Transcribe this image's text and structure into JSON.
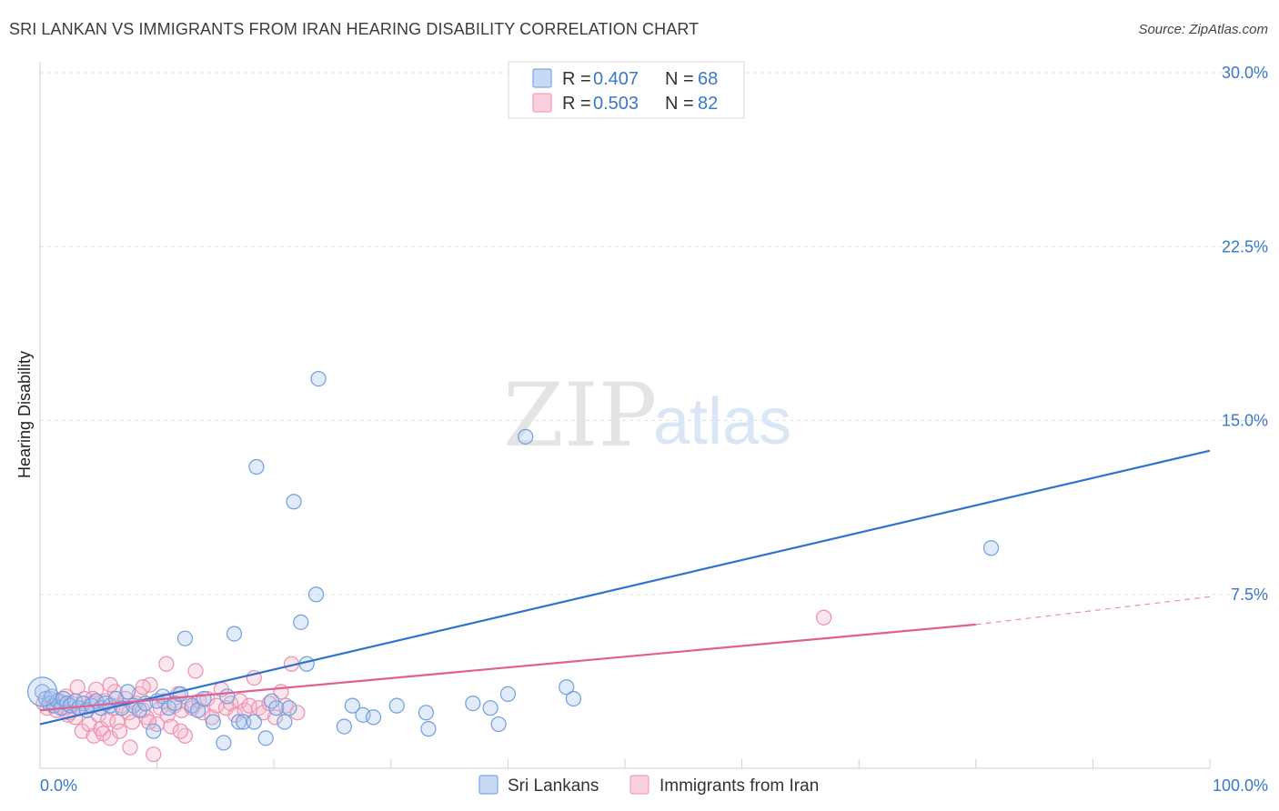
{
  "title": "SRI LANKAN VS IMMIGRANTS FROM IRAN HEARING DISABILITY CORRELATION CHART",
  "source": "Source: ZipAtlas.com",
  "watermark": {
    "zip": "ZIP",
    "atlas": "atlas"
  },
  "chart_data": {
    "type": "scatter",
    "title": "SRI LANKAN VS IMMIGRANTS FROM IRAN HEARING DISABILITY CORRELATION CHART",
    "xlabel": "",
    "ylabel": "Hearing Disability",
    "xlim": [
      0,
      100
    ],
    "ylim": [
      0,
      30
    ],
    "x_tick_labels": [
      "0.0%",
      "100.0%"
    ],
    "y_ticks": [
      7.5,
      15.0,
      22.5,
      30.0
    ],
    "y_tick_labels": [
      "7.5%",
      "15.0%",
      "22.5%",
      "30.0%"
    ],
    "grid": true,
    "legend": {
      "placement": "top-center",
      "entries": [
        {
          "r_label": "R =",
          "r_value": "0.407",
          "n_label": "N =",
          "n_value": "68",
          "color": "#7aa7e8"
        },
        {
          "r_label": "R =",
          "r_value": "0.503",
          "n_label": "N =",
          "n_value": "82",
          "color": "#f0a0bb"
        }
      ]
    },
    "series": [
      {
        "name": "Sri Lankans",
        "color": "#6f9fe0",
        "line_color": "#2f72d0",
        "trend": {
          "x0": 0,
          "y0": 1.9,
          "x1": 100,
          "y1": 13.7
        },
        "points": [
          [
            0.2,
            3.3
          ],
          [
            0.5,
            3.0
          ],
          [
            0.8,
            2.8
          ],
          [
            1.0,
            3.1
          ],
          [
            1.2,
            2.7
          ],
          [
            1.5,
            2.9
          ],
          [
            1.8,
            2.6
          ],
          [
            2.0,
            3.0
          ],
          [
            2.3,
            2.8
          ],
          [
            2.6,
            2.7
          ],
          [
            3.0,
            2.9
          ],
          [
            3.3,
            2.6
          ],
          [
            3.7,
            2.8
          ],
          [
            4.0,
            2.5
          ],
          [
            4.4,
            2.7
          ],
          [
            4.8,
            2.9
          ],
          [
            5.2,
            2.6
          ],
          [
            5.6,
            2.8
          ],
          [
            6.0,
            2.7
          ],
          [
            6.5,
            3.0
          ],
          [
            7.0,
            2.6
          ],
          [
            7.5,
            3.3
          ],
          [
            8.0,
            2.7
          ],
          [
            8.5,
            2.5
          ],
          [
            9.0,
            2.8
          ],
          [
            9.7,
            1.6
          ],
          [
            10.0,
            2.9
          ],
          [
            10.5,
            3.1
          ],
          [
            11.0,
            2.6
          ],
          [
            11.5,
            2.8
          ],
          [
            12.0,
            3.2
          ],
          [
            12.4,
            5.6
          ],
          [
            13.0,
            2.7
          ],
          [
            13.5,
            2.5
          ],
          [
            14.0,
            3.0
          ],
          [
            14.8,
            2.0
          ],
          [
            15.7,
            1.1
          ],
          [
            16.0,
            3.1
          ],
          [
            16.6,
            5.8
          ],
          [
            17.0,
            2.0
          ],
          [
            17.4,
            2.0
          ],
          [
            18.3,
            2.0
          ],
          [
            18.5,
            13.0
          ],
          [
            19.3,
            1.3
          ],
          [
            19.8,
            2.9
          ],
          [
            20.2,
            2.6
          ],
          [
            20.9,
            2.0
          ],
          [
            21.3,
            2.6
          ],
          [
            21.7,
            11.5
          ],
          [
            22.3,
            6.3
          ],
          [
            22.8,
            4.5
          ],
          [
            23.6,
            7.5
          ],
          [
            23.8,
            16.8
          ],
          [
            26.0,
            1.8
          ],
          [
            26.7,
            2.7
          ],
          [
            27.6,
            2.3
          ],
          [
            28.5,
            2.2
          ],
          [
            30.5,
            2.7
          ],
          [
            33.0,
            2.4
          ],
          [
            33.2,
            1.7
          ],
          [
            37.0,
            2.8
          ],
          [
            38.5,
            2.6
          ],
          [
            39.2,
            1.9
          ],
          [
            40.0,
            3.2
          ],
          [
            45.0,
            3.5
          ],
          [
            45.6,
            3.0
          ],
          [
            41.5,
            14.3
          ],
          [
            81.3,
            9.5
          ]
        ]
      },
      {
        "name": "Immigrants from Iran",
        "color": "#f0a0bb",
        "line_color": "#e0608f",
        "trend": {
          "x0": 0,
          "y0": 2.5,
          "x1": 80,
          "y1": 6.2
        },
        "trend_dashed": {
          "x0": 80,
          "y0": 6.2,
          "x1": 100,
          "y1": 7.4
        },
        "points": [
          [
            0.3,
            2.8
          ],
          [
            0.6,
            2.6
          ],
          [
            0.9,
            3.0
          ],
          [
            1.1,
            2.7
          ],
          [
            1.4,
            2.5
          ],
          [
            1.7,
            2.9
          ],
          [
            2.0,
            2.6
          ],
          [
            2.2,
            3.1
          ],
          [
            2.5,
            2.4
          ],
          [
            2.7,
            2.8
          ],
          [
            3.0,
            2.2
          ],
          [
            3.2,
            3.5
          ],
          [
            3.4,
            2.6
          ],
          [
            3.6,
            1.6
          ],
          [
            3.8,
            3.0
          ],
          [
            4.0,
            2.5
          ],
          [
            4.2,
            1.9
          ],
          [
            4.4,
            2.8
          ],
          [
            4.6,
            1.4
          ],
          [
            4.8,
            3.4
          ],
          [
            5.0,
            2.3
          ],
          [
            5.2,
            1.7
          ],
          [
            5.4,
            1.5
          ],
          [
            5.6,
            2.9
          ],
          [
            5.8,
            2.1
          ],
          [
            6.0,
            1.3
          ],
          [
            6.2,
            2.6
          ],
          [
            6.4,
            3.3
          ],
          [
            6.6,
            2.0
          ],
          [
            6.8,
            1.6
          ],
          [
            7.0,
            2.7
          ],
          [
            7.3,
            3.0
          ],
          [
            7.6,
            2.4
          ],
          [
            7.9,
            2.0
          ],
          [
            8.2,
            2.8
          ],
          [
            8.5,
            3.2
          ],
          [
            8.8,
            2.5
          ],
          [
            9.1,
            2.2
          ],
          [
            9.4,
            3.6
          ],
          [
            9.7,
            0.6
          ],
          [
            10.0,
            1.9
          ],
          [
            10.3,
            2.6
          ],
          [
            10.6,
            2.9
          ],
          [
            10.9,
            2.3
          ],
          [
            11.2,
            1.8
          ],
          [
            11.5,
            2.7
          ],
          [
            11.8,
            3.2
          ],
          [
            12.1,
            2.5
          ],
          [
            12.4,
            1.4
          ],
          [
            12.7,
            2.8
          ],
          [
            13.0,
            2.6
          ],
          [
            13.3,
            4.2
          ],
          [
            13.6,
            2.9
          ],
          [
            13.9,
            2.4
          ],
          [
            14.3,
            3.0
          ],
          [
            14.7,
            2.2
          ],
          [
            15.1,
            2.7
          ],
          [
            15.5,
            3.4
          ],
          [
            15.9,
            2.6
          ],
          [
            16.3,
            2.8
          ],
          [
            16.7,
            2.3
          ],
          [
            17.1,
            2.9
          ],
          [
            17.5,
            2.5
          ],
          [
            17.9,
            2.7
          ],
          [
            18.3,
            3.9
          ],
          [
            18.7,
            2.6
          ],
          [
            19.1,
            2.4
          ],
          [
            19.6,
            2.8
          ],
          [
            20.1,
            2.2
          ],
          [
            20.6,
            3.3
          ],
          [
            21.0,
            2.7
          ],
          [
            21.5,
            4.5
          ],
          [
            22.0,
            2.4
          ],
          [
            8.8,
            3.5
          ],
          [
            10.8,
            4.5
          ],
          [
            12.0,
            1.6
          ],
          [
            6.0,
            3.6
          ],
          [
            4.5,
            3.0
          ],
          [
            7.7,
            0.9
          ],
          [
            2.4,
            2.3
          ],
          [
            9.3,
            2.0
          ],
          [
            67.0,
            6.5
          ]
        ]
      }
    ]
  },
  "bottom_legend": {
    "items": [
      "Sri Lankans",
      "Immigrants from Iran"
    ]
  }
}
